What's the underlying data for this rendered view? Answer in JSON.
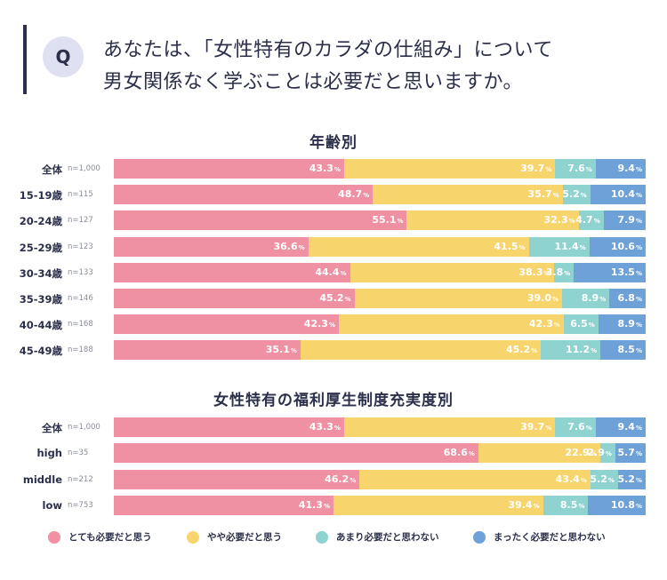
{
  "question": {
    "icon_label": "Q",
    "line1": "あなたは、「女性特有のカラダの仕組み」について",
    "line2": "男女関係なく学ぶことは必要だと思いますか。"
  },
  "colors": {
    "text": "#2b2f4a",
    "seg": [
      "#ef90a3",
      "#f7d46c",
      "#8fd3d1",
      "#6ea1d8"
    ]
  },
  "legend": [
    "とても必要だと思う",
    "やや必要だと思う",
    "あまり必要だと思わない",
    "まったく必要だと思わない"
  ],
  "chart_data": [
    {
      "type": "bar",
      "orientation": "horizontal-stacked-100",
      "title": "年齢別",
      "series": [
        {
          "name": "とても必要だと思う"
        },
        {
          "name": "やや必要だと思う"
        },
        {
          "name": "あまり必要だと思わない"
        },
        {
          "name": "まったく必要だと思わない"
        }
      ],
      "rows": [
        {
          "label": "全体",
          "n": "n=1,000",
          "values": [
            43.3,
            39.7,
            7.6,
            9.4
          ]
        },
        {
          "label": "15-19歳",
          "n": "n=115",
          "values": [
            48.7,
            35.7,
            5.2,
            10.4
          ]
        },
        {
          "label": "20-24歳",
          "n": "n=127",
          "values": [
            55.1,
            32.3,
            4.7,
            7.9
          ]
        },
        {
          "label": "25-29歳",
          "n": "n=123",
          "values": [
            36.6,
            41.5,
            11.4,
            10.6
          ]
        },
        {
          "label": "30-34歳",
          "n": "n=133",
          "values": [
            44.4,
            38.3,
            3.8,
            13.5
          ]
        },
        {
          "label": "35-39歳",
          "n": "n=146",
          "values": [
            45.2,
            39.0,
            8.9,
            6.8
          ]
        },
        {
          "label": "40-44歳",
          "n": "n=168",
          "values": [
            42.3,
            42.3,
            6.5,
            8.9
          ]
        },
        {
          "label": "45-49歳",
          "n": "n=188",
          "values": [
            35.1,
            45.2,
            11.2,
            8.5
          ]
        }
      ]
    },
    {
      "type": "bar",
      "orientation": "horizontal-stacked-100",
      "title": "女性特有の福利厚生制度充実度別",
      "series": [
        {
          "name": "とても必要だと思う"
        },
        {
          "name": "やや必要だと思う"
        },
        {
          "name": "あまり必要だと思わない"
        },
        {
          "name": "まったく必要だと思わない"
        }
      ],
      "rows": [
        {
          "label": "全体",
          "n": "n=1,000",
          "values": [
            43.3,
            39.7,
            7.6,
            9.4
          ]
        },
        {
          "label": "high",
          "n": "n=35",
          "values": [
            68.6,
            22.9,
            2.9,
            5.7
          ]
        },
        {
          "label": "middle",
          "n": "n=212",
          "values": [
            46.2,
            43.4,
            5.2,
            5.2
          ]
        },
        {
          "label": "low",
          "n": "n=753",
          "values": [
            41.3,
            39.4,
            8.5,
            10.8
          ]
        }
      ]
    }
  ]
}
